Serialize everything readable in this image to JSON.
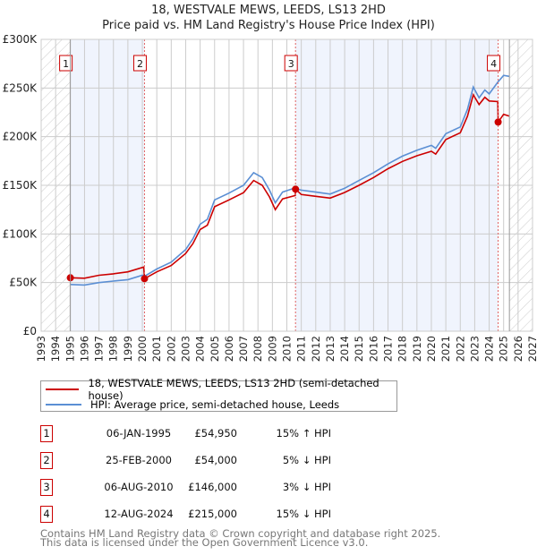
{
  "title_line1": "18, WESTVALE MEWS, LEEDS, LS13 2HD",
  "title_line2": "Price paid vs. HM Land Registry's House Price Index (HPI)",
  "chart_data": {
    "type": "line",
    "title": "18, WESTVALE MEWS, LEEDS, LS13 2HD — Price paid vs. HM Land Registry's House Price Index (HPI)",
    "xlim": [
      1993,
      2027
    ],
    "ylim": [
      0,
      300000
    ],
    "x_ticks": [
      "1993",
      "1994",
      "1995",
      "1996",
      "1997",
      "1998",
      "1999",
      "2000",
      "2001",
      "2002",
      "2003",
      "2004",
      "2005",
      "2006",
      "2007",
      "2008",
      "2009",
      "2010",
      "2011",
      "2012",
      "2013",
      "2014",
      "2015",
      "2016",
      "2017",
      "2018",
      "2019",
      "2020",
      "2021",
      "2022",
      "2023",
      "2024",
      "2025",
      "2026",
      "2027"
    ],
    "y_ticks": [
      {
        "value": 0,
        "label": "£0"
      },
      {
        "value": 50000,
        "label": "£50K"
      },
      {
        "value": 100000,
        "label": "£100K"
      },
      {
        "value": 150000,
        "label": "£150K"
      },
      {
        "value": 200000,
        "label": "£200K"
      },
      {
        "value": 250000,
        "label": "£250K"
      },
      {
        "value": 300000,
        "label": "£300K"
      }
    ],
    "grid": true,
    "hatched_ranges": [
      [
        1993,
        1995.02
      ],
      [
        2025.4,
        2027
      ]
    ],
    "shaded_ranges": [
      [
        1995.02,
        2000.15
      ],
      [
        2010.6,
        2024.62
      ]
    ],
    "series": [
      {
        "name": "18, WESTVALE MEWS, LEEDS, LS13 2HD (semi-detached house)",
        "color": "#cc0000",
        "x": [
          1995.02,
          1996,
          1997,
          1998,
          1999,
          2000.1,
          2000.15,
          2001,
          2002,
          2003,
          2003.5,
          2004,
          2004.5,
          2005,
          2006,
          2007,
          2007.7,
          2008.3,
          2008.8,
          2009.2,
          2009.7,
          2010.58,
          2010.6,
          2011,
          2012,
          2013,
          2014,
          2015,
          2016,
          2017,
          2018,
          2019,
          2020,
          2020.3,
          2021,
          2022,
          2022.5,
          2022.9,
          2023.3,
          2023.7,
          2024,
          2024.6,
          2024.62,
          2025,
          2025.4
        ],
        "y": [
          54950,
          54500,
          57500,
          59000,
          61000,
          66000,
          54000,
          61000,
          67500,
          80000,
          90000,
          104500,
          109000,
          128000,
          135000,
          142500,
          155000,
          150000,
          138000,
          125000,
          136000,
          139500,
          146000,
          140500,
          138700,
          136800,
          142600,
          150000,
          158000,
          167000,
          174600,
          180400,
          185000,
          182000,
          197000,
          204000,
          221000,
          243000,
          233000,
          240500,
          236700,
          236000,
          215000,
          223000,
          221000
        ]
      },
      {
        "name": "HPI: Average price, semi-detached house, Leeds",
        "color": "#5b8fd4",
        "x": [
          1995.02,
          1996,
          1997,
          1998,
          1999,
          2000,
          2000.2,
          2001,
          2002,
          2003,
          2003.5,
          2004,
          2004.5,
          2005,
          2006,
          2007,
          2007.7,
          2008.3,
          2008.8,
          2009.2,
          2009.7,
          2010.5,
          2011,
          2012,
          2013,
          2014,
          2015,
          2016,
          2017,
          2018,
          2019,
          2020,
          2020.3,
          2021,
          2022,
          2022.5,
          2022.9,
          2023.3,
          2023.7,
          2024,
          2024.6,
          2025,
          2025.4
        ],
        "y": [
          48000,
          47500,
          50000,
          51500,
          53000,
          57500,
          57000,
          64000,
          71000,
          84000,
          95000,
          110000,
          115000,
          135000,
          142000,
          150000,
          163000,
          158000,
          145000,
          132000,
          143000,
          147000,
          145000,
          143000,
          141000,
          147000,
          155000,
          163000,
          172000,
          180000,
          186000,
          191000,
          188000,
          203000,
          210000,
          228000,
          251000,
          240000,
          248000,
          244000,
          256000,
          263000,
          262000
        ]
      }
    ],
    "sales": [
      {
        "label": "1",
        "x": 1995.02,
        "y": 54950
      },
      {
        "label": "2",
        "x": 2000.15,
        "y": 54000
      },
      {
        "label": "3",
        "x": 2010.6,
        "y": 146000
      },
      {
        "label": "4",
        "x": 2024.62,
        "y": 215000
      }
    ]
  },
  "legend": {
    "property": "18, WESTVALE MEWS, LEEDS, LS13 2HD (semi-detached house)",
    "hpi": "HPI: Average price, semi-detached house, Leeds"
  },
  "transactions": [
    {
      "num": "1",
      "date": "06-JAN-1995",
      "price": "£54,950",
      "pct": "15% ↑ HPI"
    },
    {
      "num": "2",
      "date": "25-FEB-2000",
      "price": "£54,000",
      "pct": "5% ↓ HPI"
    },
    {
      "num": "3",
      "date": "06-AUG-2010",
      "price": "£146,000",
      "pct": "3% ↓ HPI"
    },
    {
      "num": "4",
      "date": "12-AUG-2024",
      "price": "£215,000",
      "pct": "15% ↓ HPI"
    }
  ],
  "footer": {
    "line1": "Contains HM Land Registry data © Crown copyright and database right 2025.",
    "line2": "This data is licensed under the Open Government Licence v3.0."
  }
}
